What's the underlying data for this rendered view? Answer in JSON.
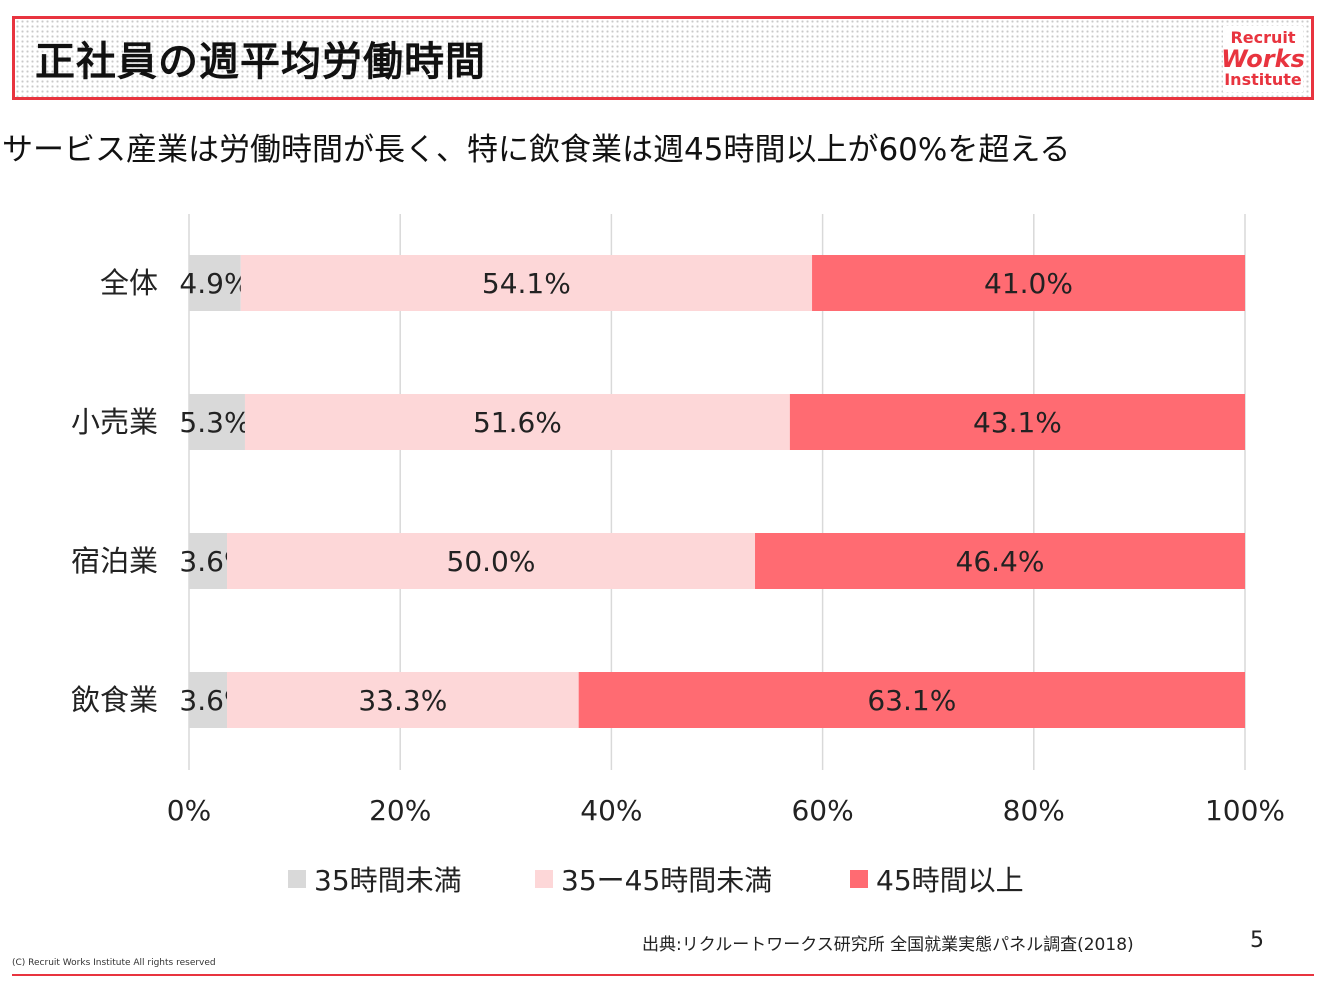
{
  "header": {
    "title": "正社員の週平均労働時間",
    "logo": {
      "line1": "Recruit",
      "line2": "Works",
      "line3": "Institute"
    }
  },
  "subtitle": "サービス産業は労働時間が長く、特に飲食業は週45時間以上が60%を超える",
  "chart_data": {
    "type": "bar",
    "orientation": "horizontal",
    "stacked": true,
    "categories": [
      "全体",
      "小売業",
      "宿泊業",
      "飲食業"
    ],
    "series": [
      {
        "name": "35時間未満",
        "values": [
          4.9,
          5.3,
          3.6,
          3.6
        ],
        "labels": [
          "4.9%",
          "5.3%",
          "3.6%",
          "3.6%"
        ],
        "color": "#d9d9d9"
      },
      {
        "name": "35ー45時間未満",
        "values": [
          54.1,
          51.6,
          50.0,
          33.3
        ],
        "labels": [
          "54.1%",
          "51.6%",
          "50.0%",
          "33.3%"
        ],
        "color": "#fdd7d8"
      },
      {
        "name": "45時間以上",
        "values": [
          41.0,
          43.1,
          46.4,
          63.1
        ],
        "labels": [
          "41.0%",
          "43.1%",
          "46.4%",
          "63.1%"
        ],
        "color": "#ff6b72"
      }
    ],
    "xlim": [
      0,
      100
    ],
    "xticks": [
      "0%",
      "20%",
      "40%",
      "60%",
      "80%",
      "100%"
    ],
    "grid": true,
    "legend_position": "bottom"
  },
  "footer": {
    "source": "出典:リクルートワークス研究所 全国就業実態パネル調査(2018)",
    "page_number": "5",
    "copyright": "(C) Recruit Works Institute All rights reserved"
  }
}
